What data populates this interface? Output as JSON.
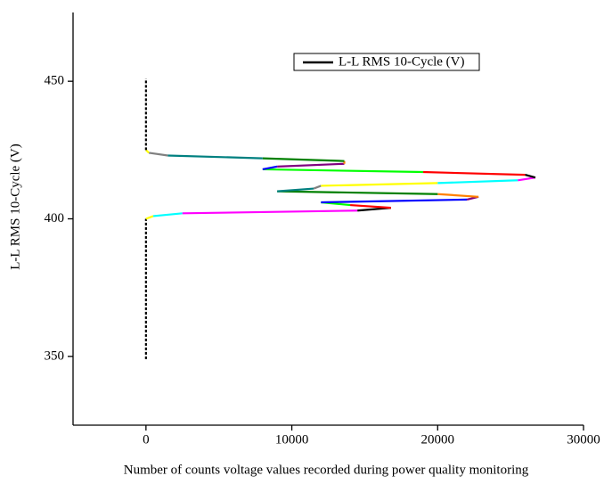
{
  "chart_data": {
    "type": "line",
    "x_label": "Number of counts voltage values recorded during power quality monitoring",
    "y_label": "L-L RMS 10-Cycle (V)",
    "xlim": [
      -5000,
      30000
    ],
    "xticks": [
      0,
      10000,
      20000,
      30000
    ],
    "ylim": [
      325,
      475
    ],
    "yticks": [
      350,
      400,
      450
    ],
    "legend": "top-right",
    "series": [
      {
        "name": "L-L RMS 10-Cycle (V)",
        "color": "#000000",
        "segment_colors": [
          "#808080",
          "#ffff00",
          "#00ffff",
          "#ff00ff",
          "#000000",
          "#ff0000",
          "#00ff00",
          "#0000ff",
          "#800080",
          "#ff8000",
          "#008000",
          "#008080"
        ],
        "x": [
          0,
          0,
          500,
          2500,
          14500,
          16800,
          14000,
          12000,
          22000,
          22800,
          20000,
          9000,
          11500,
          12000,
          20000,
          25500,
          26700,
          26000,
          19000,
          8000,
          9000,
          13600,
          13600,
          8000,
          1500,
          200,
          0,
          0
        ],
        "y": [
          349,
          400,
          401,
          402,
          403,
          404,
          405,
          406,
          407,
          408,
          409,
          410,
          411,
          412,
          413,
          414,
          415,
          416,
          417,
          418,
          419,
          420,
          421,
          422,
          423,
          424,
          425,
          451
        ]
      }
    ]
  }
}
